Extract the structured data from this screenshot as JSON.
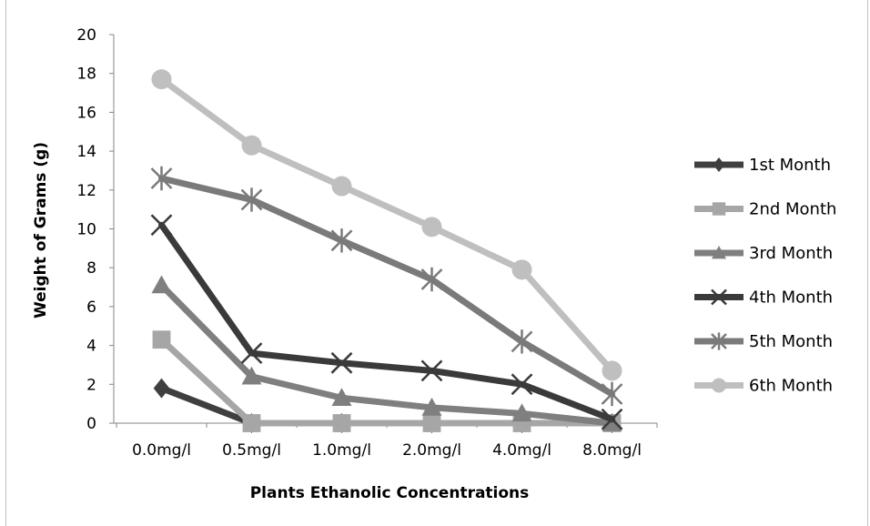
{
  "chart_data": {
    "type": "line",
    "title": "",
    "xlabel": "Plants Ethanolic Concentrations",
    "ylabel": "Weight of Grams (g)",
    "categories": [
      "0.0mg/l",
      "0.5mg/l",
      "1.0mg/l",
      "2.0mg/l",
      "4.0mg/l",
      "8.0mg/l"
    ],
    "ylim": [
      0,
      20
    ],
    "yticks": [
      0,
      2,
      4,
      6,
      8,
      10,
      12,
      14,
      16,
      18,
      20
    ],
    "grid": false,
    "legend_position": "right",
    "series": [
      {
        "name": "1st Month",
        "marker": "diamond",
        "color": "#3f3f3f",
        "values": [
          1.8,
          0,
          0,
          0,
          0,
          0
        ]
      },
      {
        "name": "2nd Month",
        "marker": "square",
        "color": "#a6a6a6",
        "values": [
          4.3,
          0,
          0,
          0,
          0,
          0
        ]
      },
      {
        "name": "3rd Month",
        "marker": "triangle",
        "color": "#7f7f7f",
        "values": [
          7.1,
          2.4,
          1.3,
          0.8,
          0.5,
          0
        ]
      },
      {
        "name": "4th Month",
        "marker": "x",
        "color": "#3a3a3a",
        "values": [
          10.2,
          3.6,
          3.1,
          2.7,
          2.0,
          0.2
        ]
      },
      {
        "name": "5th Month",
        "marker": "star",
        "color": "#7a7a7a",
        "values": [
          12.6,
          11.5,
          9.4,
          7.4,
          4.2,
          1.5
        ]
      },
      {
        "name": "6th Month",
        "marker": "circle",
        "color": "#bfbfbf",
        "values": [
          17.7,
          14.3,
          12.2,
          10.1,
          7.9,
          2.7
        ]
      }
    ]
  }
}
